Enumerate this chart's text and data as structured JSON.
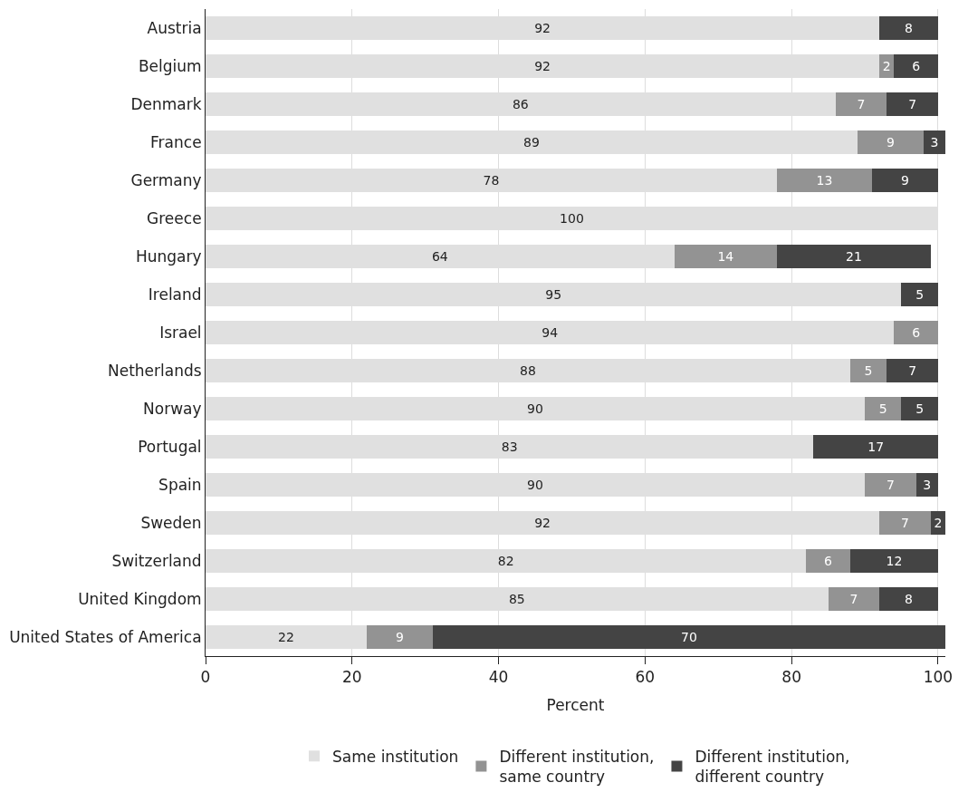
{
  "chart_data": {
    "type": "bar",
    "orientation": "horizontal",
    "stacked": true,
    "xlabel": "Percent",
    "categories": [
      "Austria",
      "Belgium",
      "Denmark",
      "France",
      "Germany",
      "Greece",
      "Hungary",
      "Ireland",
      "Israel",
      "Netherlands",
      "Norway",
      "Portugal",
      "Spain",
      "Sweden",
      "Switzerland",
      "United Kingdom",
      "United States of America"
    ],
    "series": [
      {
        "name": "Same institution",
        "color": "#e0e0e0",
        "values": [
          92,
          92,
          86,
          89,
          78,
          100,
          64,
          95,
          94,
          88,
          90,
          83,
          90,
          92,
          82,
          85,
          22
        ]
      },
      {
        "name": "Different institution, same country",
        "color": "#939393",
        "values": [
          null,
          2,
          7,
          9,
          13,
          null,
          14,
          null,
          6,
          5,
          5,
          null,
          7,
          7,
          6,
          7,
          9
        ]
      },
      {
        "name": "Different institution, different country",
        "color": "#444444",
        "values": [
          8,
          6,
          7,
          3,
          9,
          null,
          21,
          5,
          null,
          7,
          5,
          17,
          3,
          2,
          12,
          8,
          70
        ]
      }
    ],
    "xlim": [
      0,
      101
    ],
    "xticks": [
      0,
      20,
      40,
      60,
      80,
      100
    ],
    "grid": "x",
    "legend": "bottom",
    "data_labels": true
  }
}
